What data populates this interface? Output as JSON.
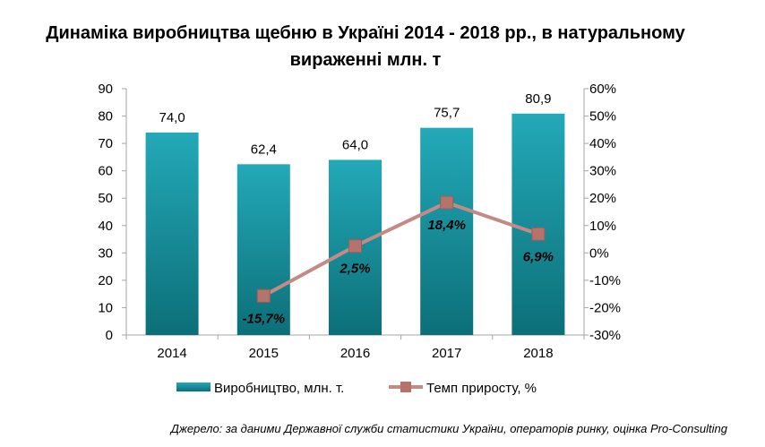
{
  "title": {
    "line1": "Динаміка виробництва щебню в Україні 2014 - 2018 рр., в натуральному",
    "line2": "вираженні млн. т"
  },
  "source": "Джерело: за даними Державної служби статистики України, операторів ринку, оцінка Pro-Consulting",
  "colors": {
    "bar_top": "#23a9b8",
    "bar_bottom": "#0c6f78",
    "line": "#c48a85",
    "marker": "#b5736d",
    "axis": "#a6a6a6"
  },
  "chart_data": {
    "type": "bar",
    "categories": [
      "2014",
      "2015",
      "2016",
      "2017",
      "2018"
    ],
    "series": [
      {
        "name": "Виробництво,  млн. т.",
        "type": "bar",
        "axis": "left",
        "values": [
          74.0,
          62.4,
          64.0,
          75.7,
          80.9
        ],
        "labels": [
          "74,0",
          "62,4",
          "64,0",
          "75,7",
          "80,9"
        ]
      },
      {
        "name": "Темп  приросту, %",
        "type": "line",
        "axis": "right",
        "values": [
          null,
          -15.7,
          2.5,
          18.4,
          6.9
        ],
        "labels": [
          "",
          "-15,7%",
          "2,5%",
          "18,4%",
          "6,9%"
        ]
      }
    ],
    "y_left": {
      "ylim": [
        0,
        90
      ],
      "ticks": [
        "0",
        "10",
        "20",
        "30",
        "40",
        "50",
        "60",
        "70",
        "80",
        "90"
      ]
    },
    "y_right": {
      "ylim": [
        -30,
        60
      ],
      "ticks": [
        "-30%",
        "-20%",
        "-10%",
        "0%",
        "10%",
        "20%",
        "30%",
        "40%",
        "50%",
        "60%"
      ]
    },
    "grid": false,
    "legend": "bottom-center"
  }
}
